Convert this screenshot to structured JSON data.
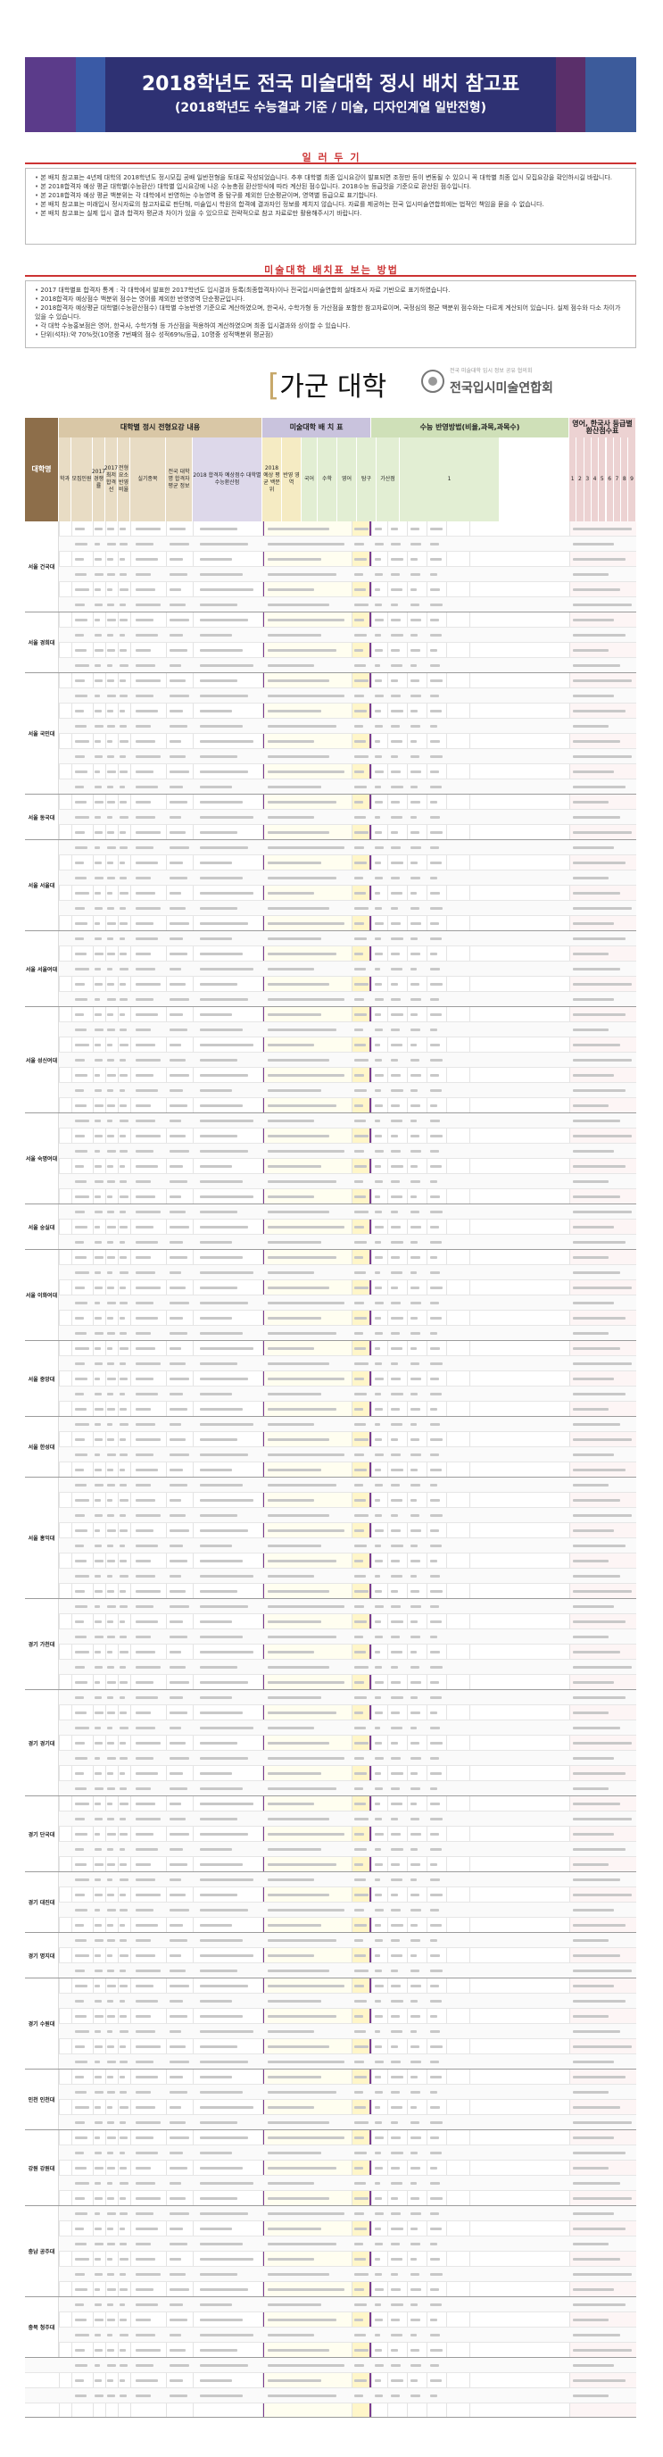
{
  "banner": {
    "title": "2018학년도 전국 미술대학 정시 배치 참고표",
    "subtitle": "(2018학년도 수능결과 기준 / 미술, 디자인계열 일반전형)",
    "stripe_colors": [
      "#5b3b8a",
      "#3a5aa6",
      "#6b2f6b",
      "#2d6e9e",
      "#7a3b6a",
      "#3b3f8f",
      "#4c2f7a",
      "#285a8a",
      "#6a3070",
      "#2f4b9a",
      "#5a2f6a",
      "#3c5b9b"
    ]
  },
  "notes1": {
    "title": "일 러 두 기",
    "items": [
      "본 배치 참고표는 4년제 대학의 2018학년도 정시모집 공배 일반전형을 토대로 작성되었습니다. 추후 대학별 최종 입시요강이 발표되면 조정만 등이 변동될 수 있으니 꼭 대학별 최종 입시 모집요강을 확인하시길 바랍니다.",
      "본 2018합격자 예상 평균 대학별(수능환산) 대학별 입시요강에 나온 수능총점 환산방식에 따라 계산된 점수입니다. 2018수능 등급컷을 기준으로 환산된 점수입니다.",
      "본 2018합격자 예상 평균 백분위는 각 대학에서 반영하는 수능영역 중 탐구를 제외한 단순평균이며, 영역별 등급으로 표기합니다.",
      "본 배치 참고표는 미래입시 정시자료의 참고자료로 판단해, 미술입시 학원의 합격예 결과자인 정보를 제치지 않습니다. 자료를 제공하는 전국 입시미술연합회에는 법적인 책임을 묻을 수 없습니다.",
      "본 배치 참고표는 실제 입시 결과 합격자 평균과 차이가 있을 수 있으므로 전략적으로 참고 자료로만 활용해주시기 바랍니다."
    ]
  },
  "notes2": {
    "title": "미술대학 배치표 보는 방법",
    "items": [
      "2017 대학별표 합격자 통계 : 각 대학에서 발표한 2017학년도 입시결과 등록(최종합격자)이나 전국입시미술연합회 실태조사 자료 기반으로 표기하였습니다.",
      "2018합격자 예상점수 백분위 점수는 영어를 제외한 반영영역 단순평균입니다.",
      "2018합격자 예상평균 대학별(수능환산점수) 대학별 수능반영 기준으로 계산하였으며, 한국사, 수학가형 등 가산점을 포함한 참고자료이며, 국정심의 평균 백분위 점수와는 다르게 계산되어 있습니다. 실제 점수와 다소 차이가 있을 수 있습니다.",
      "각 대학 수능홍보점은 영어, 한국사, 수학가형 등 가산점을 적용하여 계산하였으며 최종 입시결과와 상이할 수 있습니다.",
      "단위(석차):약 70%컷(10명중 7번째의 점수 성적69%/등급, 10명중 성적백분위 평균점)"
    ]
  },
  "section": {
    "title": "가군 대학",
    "org_name": "전국입시미술연합회",
    "org_tag": "전국 미술대학 입시 정보 공유 협의회"
  },
  "table_header": {
    "univ": "대학명",
    "stats_2017": "대학별 정시 전형요강 내용",
    "placement": "미술대학 배 치 표",
    "suneung": "수능 반영방법(비율,과목,과목수)",
    "english": "영어, 한국사 등급별 환산점수표",
    "sub_cols": [
      "지역",
      "대학",
      "학과",
      "모집인원",
      "2017 경쟁률",
      "2017 최저 합격선",
      "전형요소 반영비율",
      "실기종목",
      "전국 대학명 합격자 평균 정보",
      "2018 합격자 예상점수 대학별 수능환산점",
      "2018 예상 평균 백분위",
      "반영 영역",
      "국어",
      "수학",
      "영어",
      "탐구",
      "가산점",
      "1",
      "2",
      "3",
      "4",
      "5",
      "6",
      "7",
      "8",
      "9"
    ]
  },
  "universities": [
    {
      "name": "서울 건국대",
      "rows": 6
    },
    {
      "name": "서울 경희대",
      "rows": 4
    },
    {
      "name": "서울 국민대",
      "rows": 8
    },
    {
      "name": "서울 동국대",
      "rows": 3
    },
    {
      "name": "서울 서울대",
      "rows": 6
    },
    {
      "name": "서울 서울여대",
      "rows": 5
    },
    {
      "name": "서울 성신여대",
      "rows": 7
    },
    {
      "name": "서울 숙명여대",
      "rows": 6
    },
    {
      "name": "서울 숭실대",
      "rows": 3
    },
    {
      "name": "서울 이화여대",
      "rows": 6
    },
    {
      "name": "서울 중앙대",
      "rows": 5
    },
    {
      "name": "서울 한성대",
      "rows": 4
    },
    {
      "name": "서울 홍익대",
      "rows": 8
    },
    {
      "name": "경기 가천대",
      "rows": 6
    },
    {
      "name": "경기 경기대",
      "rows": 7
    },
    {
      "name": "경기 단국대",
      "rows": 5
    },
    {
      "name": "경기 대진대",
      "rows": 4
    },
    {
      "name": "경기 명지대",
      "rows": 3
    },
    {
      "name": "경기 수원대",
      "rows": 6
    },
    {
      "name": "인천 인천대",
      "rows": 4
    },
    {
      "name": "강원 강원대",
      "rows": 5
    },
    {
      "name": "충남 공주대",
      "rows": 6
    },
    {
      "name": "충북 청주대",
      "rows": 4
    },
    {
      "name": "대전 한남대",
      "rows": 5
    },
    {
      "name": "전북 전북대",
      "rows": 6
    },
    {
      "name": "광주 조선대",
      "rows": 4
    },
    {
      "name": "대구 경북대",
      "rows": 5
    },
    {
      "name": "부산 부산대",
      "rows": 6
    }
  ],
  "colors": {
    "accent_red": "#cc3333",
    "header_tan": "#d9c7a6",
    "header_purple": "#c9c3dd",
    "header_green": "#cfe0b8",
    "highlight": "#fffdd6"
  }
}
